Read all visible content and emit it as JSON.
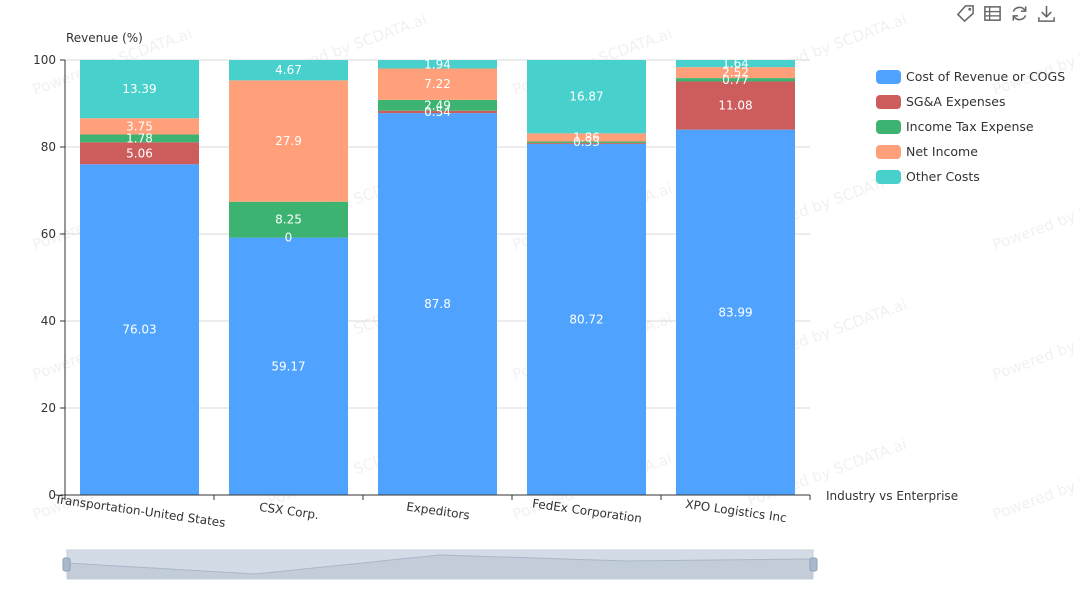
{
  "chart_data": {
    "type": "bar",
    "stacked": true,
    "ylabel": "Revenue (%)",
    "xlabel": "Industry vs Enterprise",
    "ylim": [
      0,
      100
    ],
    "yticks": [
      "0",
      "20",
      "40",
      "60",
      "80",
      "100"
    ],
    "categories": [
      "Transportation-United States",
      "CSX Corp.",
      "Expeditors",
      "FedEx Corporation",
      "XPO Logistics Inc"
    ],
    "series": [
      {
        "name": "Cost of Revenue or COGS",
        "color": "#4fa3ff",
        "values": [
          76.03,
          59.17,
          87.8,
          80.72,
          83.99
        ]
      },
      {
        "name": "SG&A Expenses",
        "color": "#cd5c5c",
        "values": [
          5.06,
          0,
          0.54,
          0.22,
          11.08
        ]
      },
      {
        "name": "Income Tax Expense",
        "color": "#3cb371",
        "values": [
          1.78,
          8.25,
          2.49,
          0.33,
          0.77
        ]
      },
      {
        "name": "Net Income",
        "color": "#ffa07a",
        "values": [
          3.75,
          27.9,
          7.22,
          1.86,
          2.52
        ]
      },
      {
        "name": "Other Costs",
        "color": "#48d1cc",
        "values": [
          13.39,
          4.67,
          1.94,
          16.87,
          1.64
        ]
      }
    ],
    "data_labels": [
      [
        "76.03",
        "59.17",
        "87.8",
        "80.72",
        "83.99"
      ],
      [
        "5.06",
        "0",
        "0.54",
        "",
        "11.08"
      ],
      [
        "1.78",
        "8.25",
        "2.49",
        "0.33",
        "0.77"
      ],
      [
        "3.75",
        "27.9",
        "7.22",
        "1.86",
        "2.52"
      ],
      [
        "13.39",
        "4.67",
        "1.94",
        "16.87",
        "1.64"
      ]
    ],
    "grid": true,
    "legend_position": "right"
  },
  "watermark": "Powered by SCDATA.ai",
  "toolbar": {
    "icons": [
      "tag-icon",
      "data-view-icon",
      "restore-icon",
      "download-icon"
    ]
  }
}
